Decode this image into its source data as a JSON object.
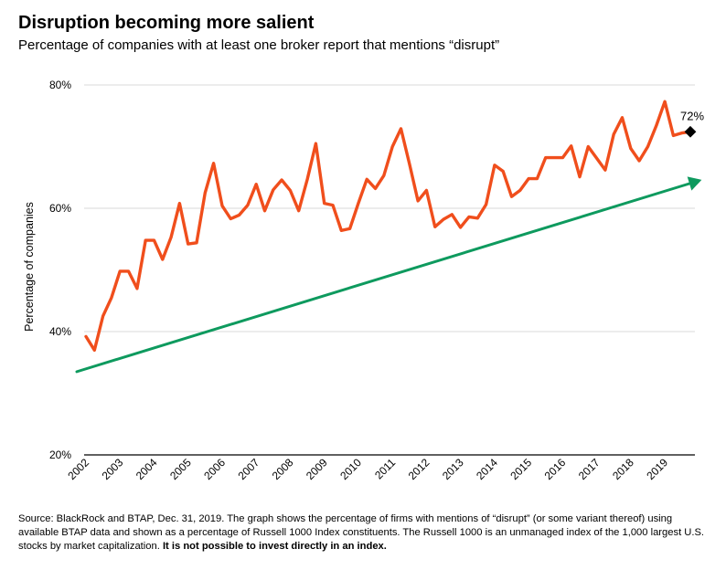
{
  "title": "Disruption becoming more salient",
  "subtitle": "Percentage of companies with at least one broker report that mentions “disrupt”",
  "source": {
    "text": "Source: BlackRock and BTAP, Dec. 31, 2019. The graph shows the percentage of firms with mentions of “disrupt” (or some variant thereof) using available BTAP data and shown as a percentage of Russell 1000 Index constituents. The Russell 1000 is an unmanaged index of the 1,000 largest U.S. stocks by market capitalization.",
    "bold": "It is not possible to invest directly in an index."
  },
  "chart_data": {
    "type": "line",
    "ylabel": "Percentage of companies",
    "xlabel": "",
    "ylim": [
      20,
      80
    ],
    "yticks": [
      "20%",
      "40%",
      "60%",
      "80%"
    ],
    "ytick_values": [
      20,
      40,
      60,
      80
    ],
    "xticks": [
      "2002",
      "2003",
      "2004",
      "2005",
      "2006",
      "2007",
      "2008",
      "2009",
      "2010",
      "2011",
      "2012",
      "2013",
      "2014",
      "2015",
      "2016",
      "2017",
      "2018",
      "2019"
    ],
    "grid": "horizontal",
    "colors": {
      "series": "#f04e1c",
      "trend": "#0e9a5e",
      "marker": "#000000",
      "grid": "#d9d9d9",
      "axis": "#000000"
    },
    "series": [
      {
        "values": [
          39.2,
          37.0,
          42.5,
          45.5,
          49.8,
          49.8,
          47.0,
          54.8,
          54.8,
          51.7,
          55.3,
          60.8,
          54.2,
          54.4,
          62.5,
          67.3,
          60.4,
          58.3,
          58.9,
          60.5,
          63.9,
          59.6,
          63.0,
          64.6,
          62.9,
          59.6,
          64.7,
          70.5,
          60.8,
          60.5,
          56.4,
          56.7,
          60.8,
          64.7,
          63.2,
          65.3,
          70.0,
          72.9,
          67.2,
          61.2,
          62.9,
          57.0,
          58.2,
          59.0,
          56.9,
          58.6,
          58.4,
          60.6,
          67.0,
          66.0,
          61.9,
          62.9,
          64.8,
          64.8,
          68.2,
          68.2,
          68.2,
          70.1,
          65.1,
          70.0,
          68.1,
          66.2,
          72.0,
          74.7,
          69.7,
          67.7,
          70.0,
          73.4,
          77.3,
          71.8,
          72.2,
          72.4
        ]
      }
    ],
    "trend": {
      "start": 33.5,
      "end": 64.0
    },
    "annotation": {
      "label": "72%",
      "value": 72.4
    }
  }
}
